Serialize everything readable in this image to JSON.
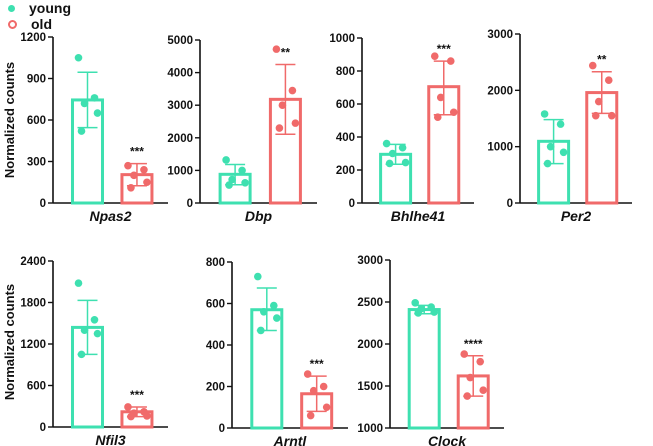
{
  "legend": {
    "young": {
      "label": "young",
      "color": "#3ee0b0"
    },
    "old": {
      "label": "old",
      "color": "#f06a6a"
    }
  },
  "ylabel": "Normalized counts",
  "chart_data": [
    {
      "type": "bar",
      "title": "Npas2",
      "ylabel": "Normalized counts",
      "ylim": [
        0,
        1200
      ],
      "ticks": [
        0,
        300,
        600,
        900,
        1200
      ],
      "series": [
        {
          "name": "young",
          "mean": 745,
          "sd_upper": 945,
          "sd_lower": 545,
          "points": [
            1050,
            760,
            720,
            650,
            520
          ]
        },
        {
          "name": "old",
          "mean": 205,
          "sd_upper": 285,
          "sd_lower": 125,
          "points": [
            270,
            240,
            200,
            150,
            110
          ]
        }
      ],
      "significance": "***"
    },
    {
      "type": "bar",
      "title": "Dbp",
      "ylabel": "",
      "ylim": [
        0,
        5000
      ],
      "ticks": [
        0,
        1000,
        2000,
        3000,
        4000,
        5000
      ],
      "series": [
        {
          "name": "young",
          "mean": 880,
          "sd_upper": 1180,
          "sd_lower": 560,
          "points": [
            1320,
            1000,
            720,
            620,
            550
          ]
        },
        {
          "name": "old",
          "mean": 3180,
          "sd_upper": 4250,
          "sd_lower": 2110,
          "points": [
            4720,
            3450,
            3000,
            2450,
            2300
          ]
        }
      ],
      "significance": "**"
    },
    {
      "type": "bar",
      "title": "Bhlhe41",
      "ylabel": "",
      "ylim": [
        0,
        1000
      ],
      "ticks": [
        0,
        200,
        400,
        600,
        800,
        1000
      ],
      "series": [
        {
          "name": "young",
          "mean": 295,
          "sd_upper": 355,
          "sd_lower": 235,
          "points": [
            360,
            335,
            300,
            245,
            240
          ]
        },
        {
          "name": "old",
          "mean": 705,
          "sd_upper": 860,
          "sd_lower": 535,
          "points": [
            890,
            860,
            640,
            550,
            520
          ]
        }
      ],
      "significance": "***"
    },
    {
      "type": "bar",
      "title": "Per2",
      "ylabel": "",
      "ylim": [
        0,
        3000
      ],
      "ticks": [
        0,
        1000,
        2000,
        3000
      ],
      "series": [
        {
          "name": "young",
          "mean": 1095,
          "sd_upper": 1480,
          "sd_lower": 700,
          "points": [
            1580,
            1400,
            1000,
            900,
            700
          ]
        },
        {
          "name": "old",
          "mean": 1960,
          "sd_upper": 2330,
          "sd_lower": 1590,
          "points": [
            2440,
            2180,
            1800,
            1550,
            1550
          ]
        }
      ],
      "significance": "**"
    },
    {
      "type": "bar",
      "title": "Nfil3",
      "ylabel": "Normalized counts",
      "ylim": [
        0,
        2400
      ],
      "ticks": [
        0,
        600,
        1200,
        1800,
        2400
      ],
      "series": [
        {
          "name": "young",
          "mean": 1440,
          "sd_upper": 1830,
          "sd_lower": 1050,
          "points": [
            2080,
            1550,
            1400,
            1350,
            1050
          ]
        },
        {
          "name": "old",
          "mean": 220,
          "sd_upper": 290,
          "sd_lower": 150,
          "points": [
            290,
            220,
            200,
            160,
            150
          ]
        }
      ],
      "significance": "***"
    },
    {
      "type": "bar",
      "title": "Arntl",
      "ylabel": "",
      "ylim": [
        0,
        800
      ],
      "ticks": [
        0,
        200,
        400,
        600,
        800
      ],
      "series": [
        {
          "name": "young",
          "mean": 570,
          "sd_upper": 675,
          "sd_lower": 470,
          "points": [
            730,
            590,
            560,
            530,
            470
          ]
        },
        {
          "name": "old",
          "mean": 165,
          "sd_upper": 250,
          "sd_lower": 80,
          "points": [
            260,
            200,
            180,
            100,
            60
          ]
        }
      ],
      "significance": "***"
    },
    {
      "type": "bar",
      "title": "Clock",
      "ylabel": "",
      "ylim": [
        1000,
        3000
      ],
      "ticks": [
        1000,
        1500,
        2000,
        2500,
        3000
      ],
      "series": [
        {
          "name": "young",
          "mean": 2410,
          "sd_upper": 2460,
          "sd_lower": 2360,
          "points": [
            2490,
            2440,
            2420,
            2380,
            2370
          ]
        },
        {
          "name": "old",
          "mean": 1620,
          "sd_upper": 1860,
          "sd_lower": 1380,
          "points": [
            1880,
            1790,
            1600,
            1450,
            1380
          ]
        }
      ],
      "significance": "****"
    }
  ]
}
